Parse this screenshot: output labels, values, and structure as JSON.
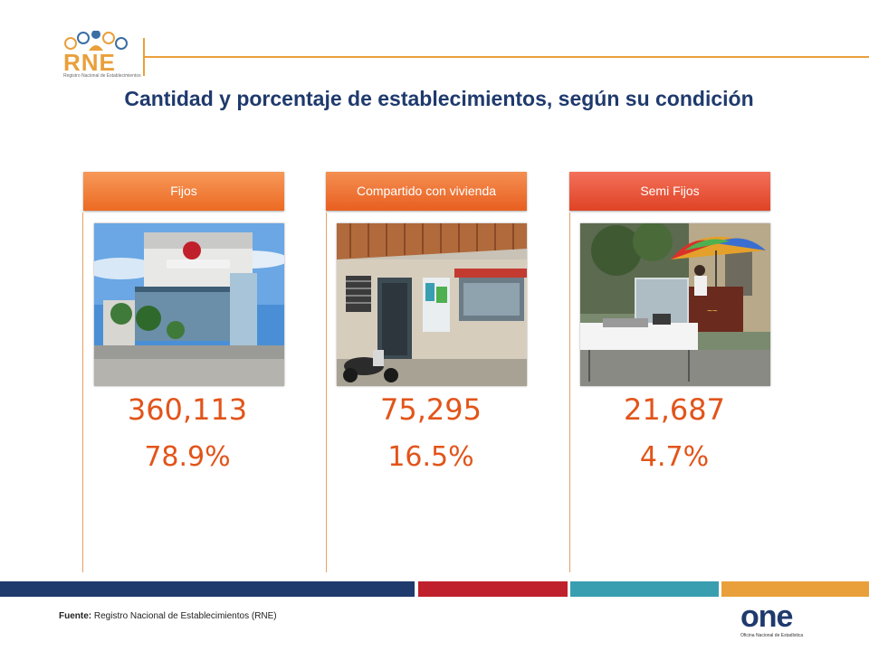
{
  "header": {
    "logo_text": "RNE",
    "logo_sub": "Registro Nacional de Establecimientos",
    "title": "Cantidad y porcentaje de establecimientos, según su condición"
  },
  "categories": [
    {
      "label": "Fijos",
      "count": "360,113",
      "percent": "78.9%",
      "photo": "shopping-mall-photo"
    },
    {
      "label": "Compartido con vivienda",
      "count": "75,295",
      "percent": "16.5%",
      "photo": "house-shop-photo"
    },
    {
      "label": "Semi Fijos",
      "count": "21,687",
      "percent": "4.7%",
      "photo": "street-stall-photo"
    }
  ],
  "footer": {
    "source_label": "Fuente:",
    "source_text": " Registro Nacional de Establecimientos (RNE)",
    "one_logo": "one",
    "one_sub": "Oficina Nacional de Estadística",
    "bar_colors": [
      "#1f3a6d",
      "#c0202b",
      "#3a9eb1",
      "#e9a03b"
    ]
  },
  "colors": {
    "title": "#1f3a6d",
    "values": "#e2541a",
    "accent": "#e9a03b"
  }
}
